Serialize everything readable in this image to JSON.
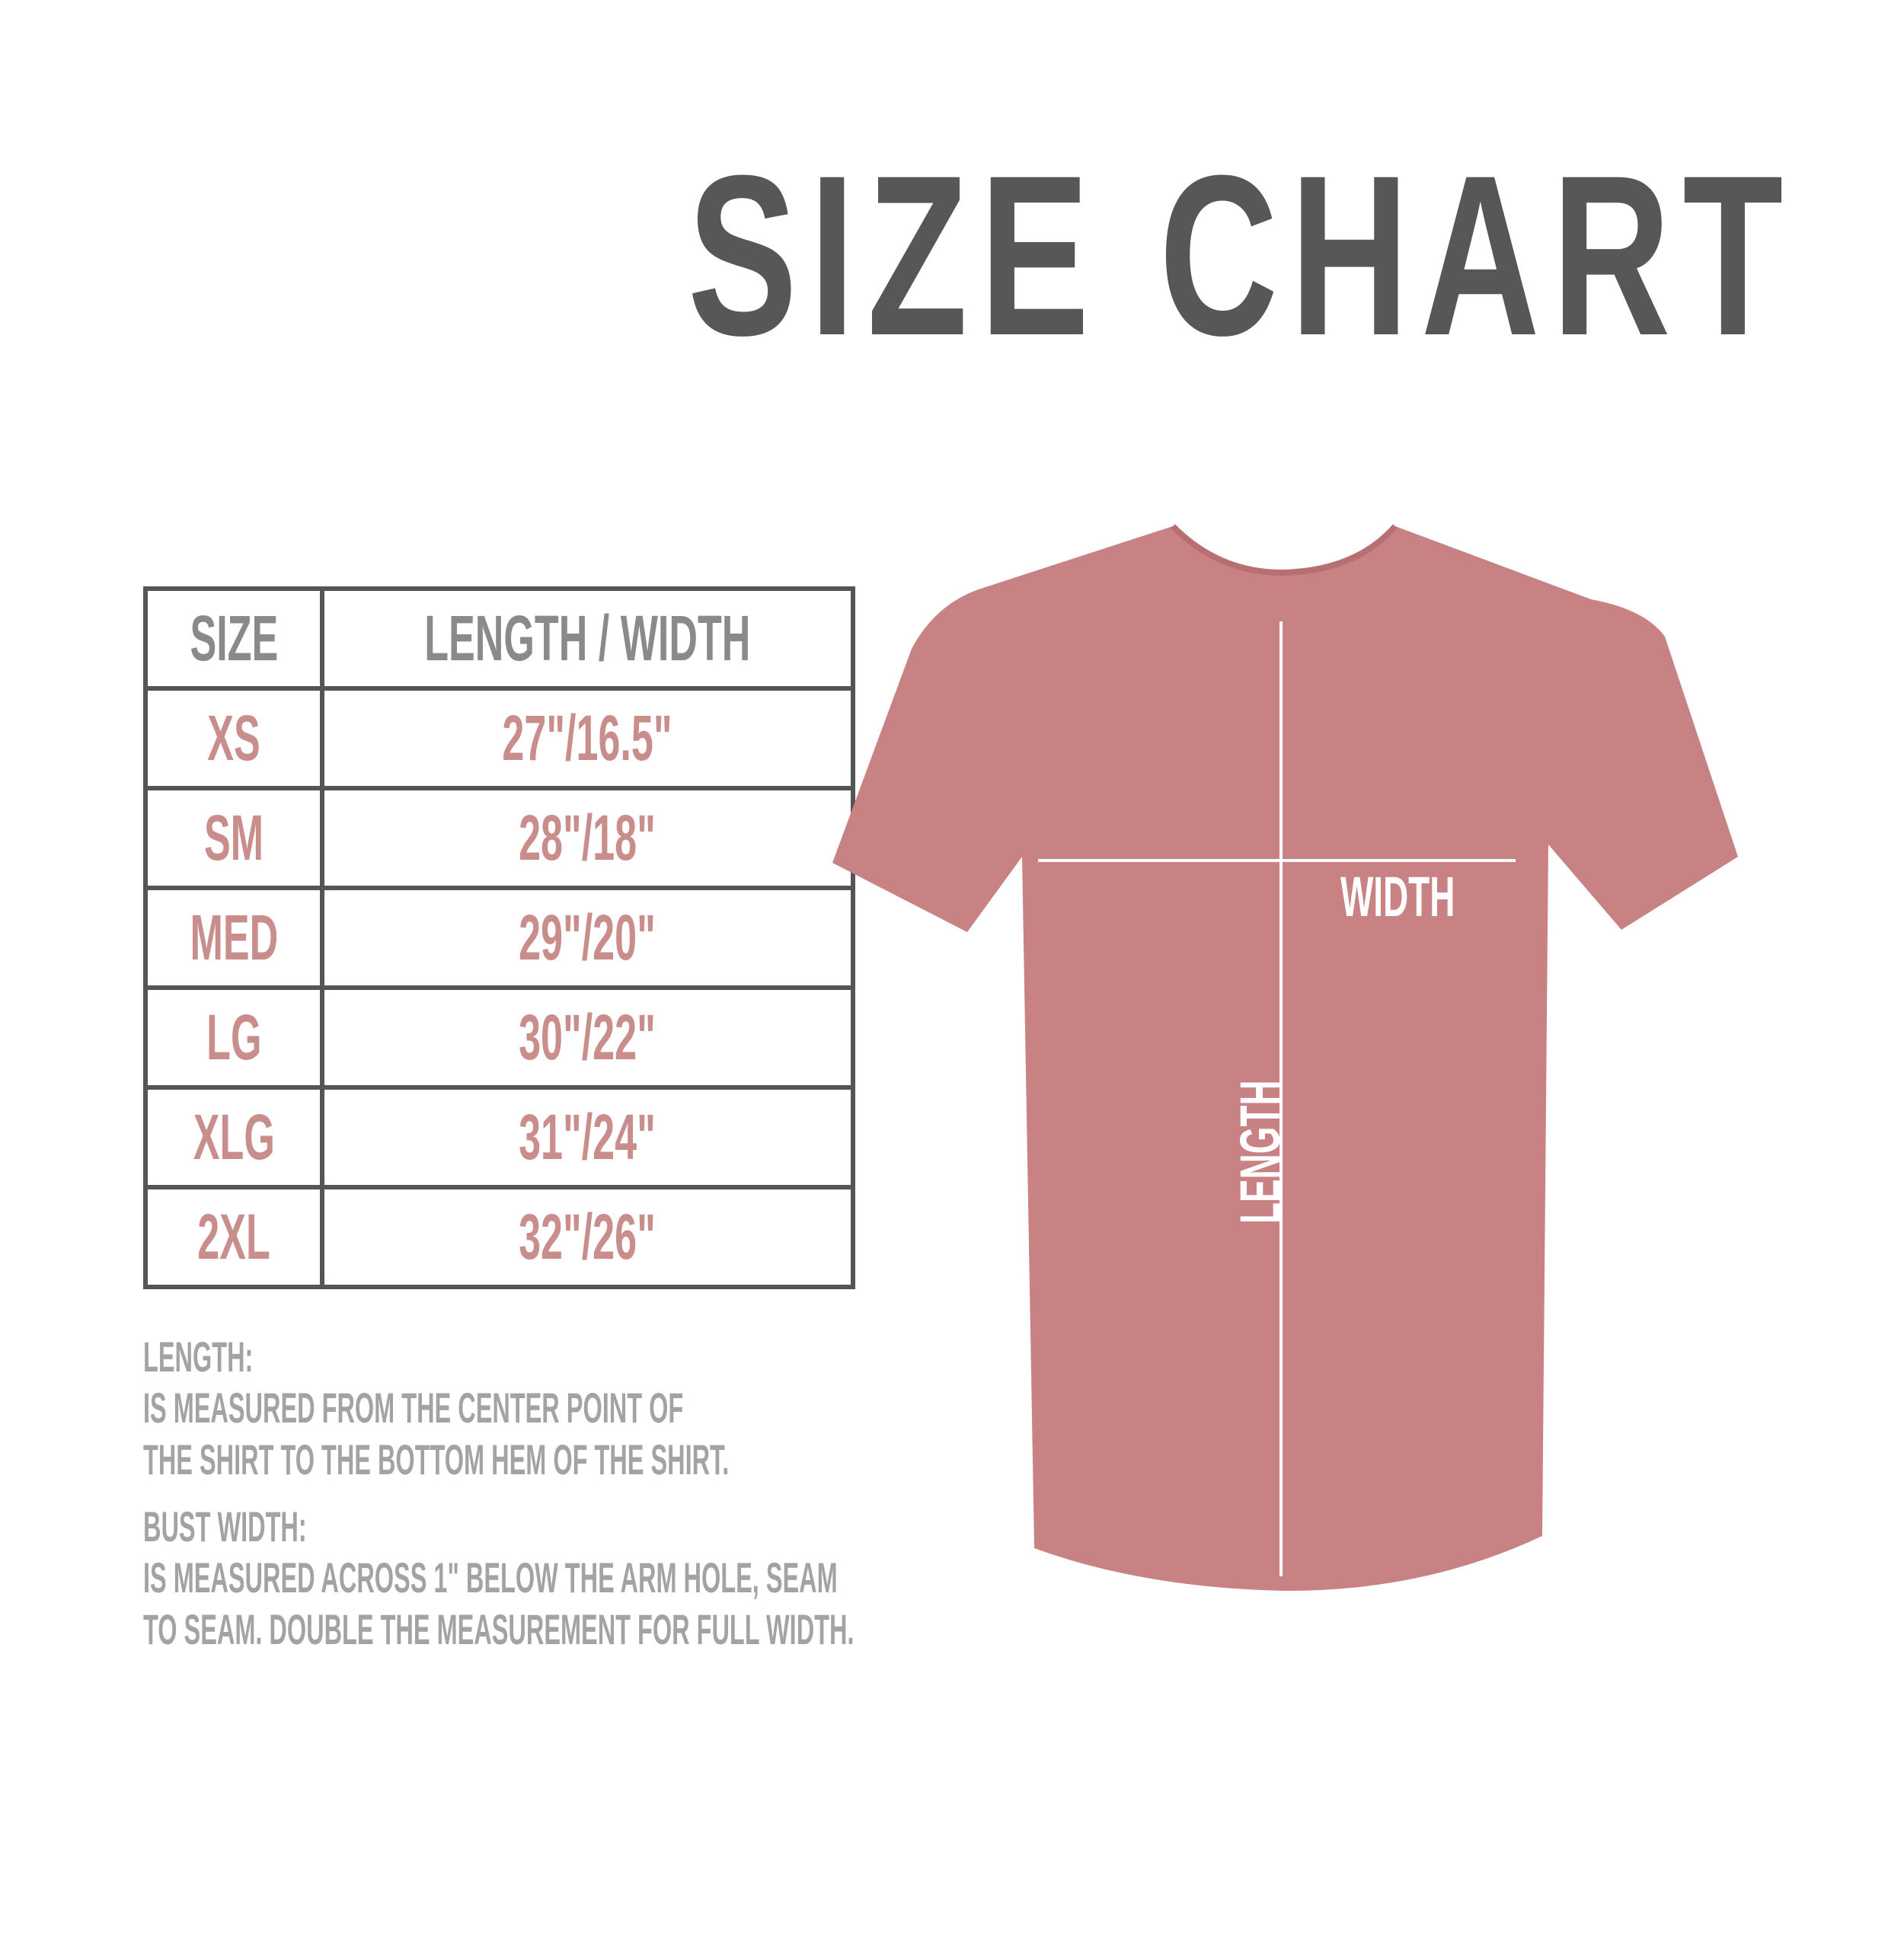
{
  "title": "SIZE CHART",
  "table": {
    "headers": [
      "SIZE",
      "LENGTH / WIDTH"
    ],
    "rows": [
      {
        "size": "XS",
        "value": "27\"/16.5\""
      },
      {
        "size": "SM",
        "value": "28\"/18\""
      },
      {
        "size": "MED",
        "value": "29\"/20\""
      },
      {
        "size": "LG",
        "value": "30\"/22\""
      },
      {
        "size": "XLG",
        "value": "31\"/24\""
      },
      {
        "size": "2XL",
        "value": "32\"/26\""
      }
    ]
  },
  "notes": {
    "length_label": "LENGTH:",
    "length_line1": "IS MEASURED FROM THE CENTER POINT OF",
    "length_line2": "THE SHIRT TO THE BOTTOM HEM OF THE SHIRT.",
    "width_label": "BUST WIDTH:",
    "width_line1": "IS MEASURED ACROSS  1\" BELOW THE ARM HOLE, SEAM",
    "width_line2": "TO SEAM. DOUBLE THE MEASUREMENT FOR FULL WIDTH."
  },
  "shirt": {
    "color": "#c98283",
    "width_label": "WIDTH",
    "length_label": "LENGTH"
  },
  "colors": {
    "title": "#575757",
    "header_text": "#8a8a8a",
    "value_text": "#c98d8b",
    "note_text": "#a3a3a3"
  }
}
